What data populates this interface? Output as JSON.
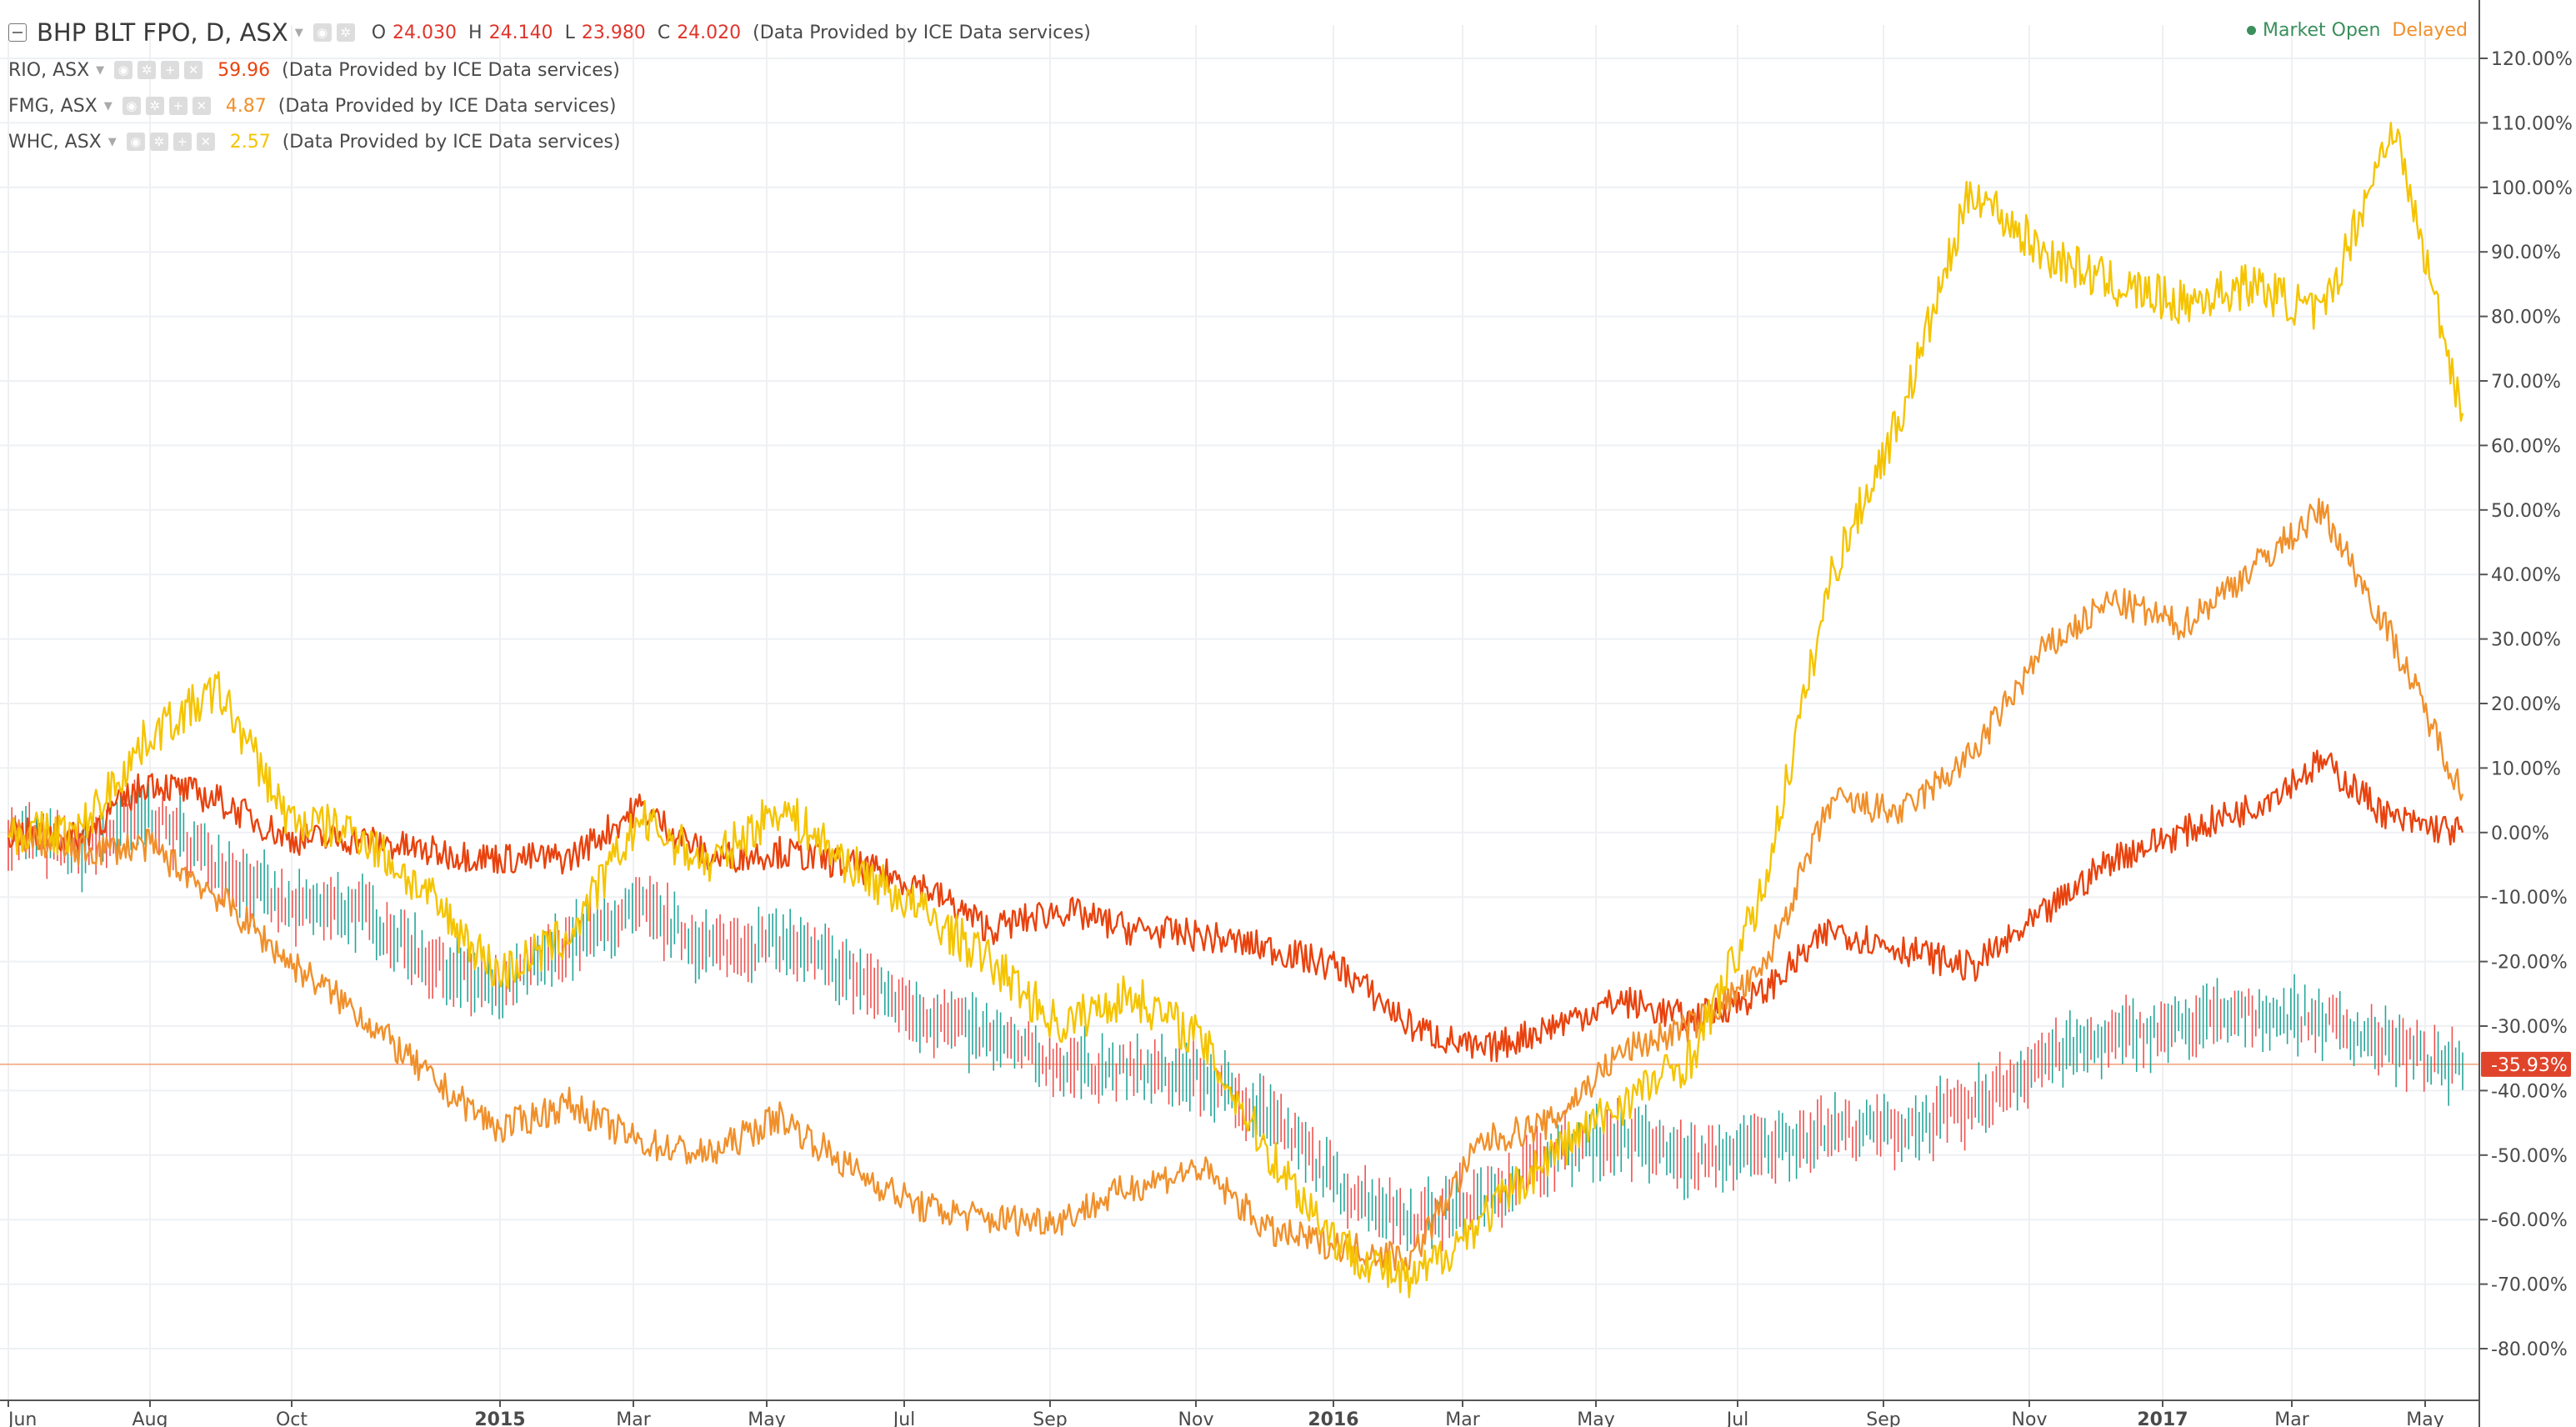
{
  "header": {
    "symbol": "BHP BLT FPO, D, ASX",
    "ohlc": [
      {
        "k": "O",
        "v": "24.030"
      },
      {
        "k": "H",
        "v": "24.140"
      },
      {
        "k": "L",
        "v": "23.980"
      },
      {
        "k": "C",
        "v": "24.020"
      }
    ],
    "provider": "(Data Provided by ICE Data services)"
  },
  "compare": [
    {
      "symbol": "RIO, ASX",
      "value": "59.96",
      "color": "#e8430f",
      "provider": "(Data Provided by ICE Data services)"
    },
    {
      "symbol": "FMG, ASX",
      "value": "4.87",
      "color": "#f0902b",
      "provider": "(Data Provided by ICE Data services)"
    },
    {
      "symbol": "WHC, ASX",
      "value": "2.57",
      "color": "#f5c400",
      "provider": "(Data Provided by ICE Data services)"
    }
  ],
  "status": {
    "market": "Market Open",
    "feed": "Delayed"
  },
  "icons": {
    "eye": "eye-icon",
    "gear": "gear-icon",
    "plus": "plus-icon",
    "close": "close-icon"
  },
  "chart_data": {
    "type": "line",
    "y_unit": "%",
    "ylim": [
      -85,
      120
    ],
    "y_ticks": [
      "120.00%",
      "110.00%",
      "100.00%",
      "90.00%",
      "80.00%",
      "70.00%",
      "60.00%",
      "50.00%",
      "40.00%",
      "30.00%",
      "20.00%",
      "10.00%",
      "0.00%",
      "-10.00%",
      "-20.00%",
      "-30.00%",
      "-40.00%",
      "-50.00%",
      "-60.00%",
      "-70.00%",
      "-80.00%"
    ],
    "x_ticks": [
      "Jun",
      "Aug",
      "Oct",
      "2015",
      "Mar",
      "May",
      "Jul",
      "Sep",
      "Nov",
      "2016",
      "Mar",
      "May",
      "Jul",
      "Sep",
      "Nov",
      "2017",
      "Mar",
      "May"
    ],
    "bold_x_ticks": [
      "2015",
      "2016",
      "2017"
    ],
    "x": [
      "2014-06",
      "2014-07",
      "2014-08",
      "2014-09",
      "2014-10",
      "2014-11",
      "2014-12",
      "2015-01",
      "2015-02",
      "2015-03",
      "2015-04",
      "2015-05",
      "2015-06",
      "2015-07",
      "2015-08",
      "2015-09",
      "2015-10",
      "2015-11",
      "2015-12",
      "2016-01",
      "2016-02",
      "2016-03",
      "2016-04",
      "2016-05",
      "2016-06",
      "2016-07",
      "2016-08",
      "2016-09",
      "2016-10",
      "2016-11",
      "2016-12",
      "2017-01",
      "2017-02",
      "2017-03",
      "2017-04",
      "2017-05"
    ],
    "grid": true,
    "last_value_label": "-35.93%",
    "last_value": -35.93,
    "series": [
      {
        "name": "BHP BLT FPO, D, ASX",
        "style": "ohlc",
        "color": "#26a69a",
        "values": [
          0,
          -3,
          3,
          -5,
          -12,
          -12,
          -20,
          -25,
          -17,
          -12,
          -18,
          -17,
          -22,
          -28,
          -32,
          -36,
          -37,
          -38,
          -44,
          -55,
          -60,
          -57,
          -50,
          -47,
          -51,
          -49,
          -46,
          -46,
          -43,
          -35,
          -32,
          -30,
          -28,
          -29,
          -33,
          -37
        ]
      },
      {
        "name": "RIO, ASX",
        "style": "line",
        "color": "#e8430f",
        "values": [
          0,
          -1,
          8,
          5,
          -1,
          -1,
          -3,
          -4,
          -4,
          4,
          -4,
          -3,
          -5,
          -8,
          -15,
          -12,
          -15,
          -16,
          -18,
          -21,
          -30,
          -34,
          -30,
          -26,
          -29,
          -25,
          -15,
          -18,
          -21,
          -13,
          -4,
          0,
          4,
          11,
          2,
          0
        ]
      },
      {
        "name": "FMG, ASX",
        "style": "line",
        "color": "#f0902b",
        "values": [
          0,
          -3,
          -2,
          -10,
          -20,
          -28,
          -38,
          -46,
          -42,
          -48,
          -50,
          -44,
          -52,
          -58,
          -60,
          -60,
          -55,
          -52,
          -62,
          -64,
          -66,
          -48,
          -45,
          -34,
          -30,
          -22,
          5,
          3,
          12,
          28,
          36,
          32,
          41,
          50,
          30,
          6
        ]
      },
      {
        "name": "WHC, ASX",
        "style": "line",
        "color": "#f5c400",
        "values": [
          0,
          0,
          15,
          22,
          2,
          0,
          -10,
          -22,
          -16,
          2,
          -5,
          4,
          -5,
          -12,
          -20,
          -30,
          -25,
          -32,
          -50,
          -64,
          -70,
          -60,
          -50,
          -42,
          -35,
          -10,
          40,
          65,
          100,
          90,
          85,
          82,
          85,
          80,
          110,
          65
        ]
      }
    ]
  }
}
